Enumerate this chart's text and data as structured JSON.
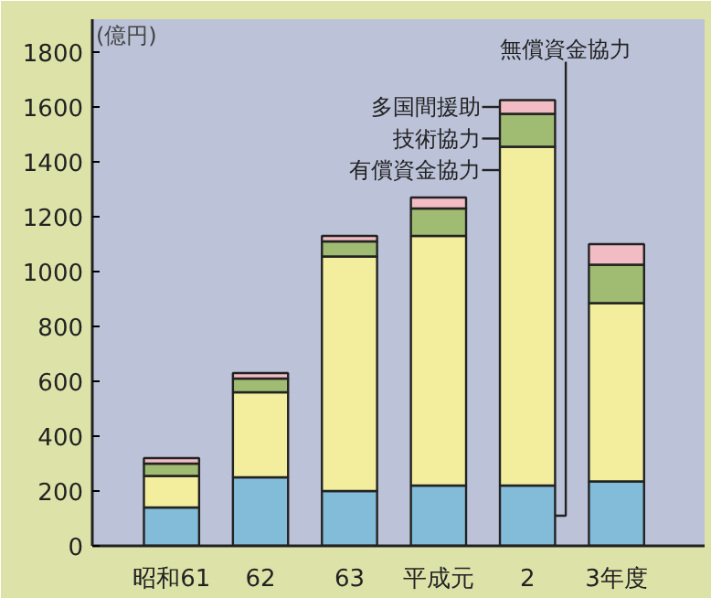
{
  "chart_data": {
    "type": "bar",
    "stacked": true,
    "ylabel": "(億円)",
    "categories": [
      "昭和61",
      "62",
      "63",
      "平成元",
      "2",
      "3年度"
    ],
    "series": [
      {
        "name": "無償資金協力",
        "color": "#82bcd8",
        "values": [
          140,
          250,
          200,
          220,
          220,
          235
        ]
      },
      {
        "name": "有償資金協力",
        "color": "#f2ee9e",
        "values": [
          115,
          310,
          855,
          910,
          1235,
          650
        ]
      },
      {
        "name": "技術協力",
        "color": "#a0bc72",
        "values": [
          45,
          50,
          55,
          100,
          120,
          140
        ]
      },
      {
        "name": "多国間援助",
        "color": "#f2bcc4",
        "values": [
          20,
          20,
          20,
          40,
          50,
          75
        ]
      }
    ],
    "ylim": [
      0,
      1920
    ],
    "yticks": [
      0,
      200,
      400,
      600,
      800,
      1000,
      1200,
      1400,
      1600,
      1800
    ],
    "grid": false,
    "legend": "top"
  }
}
